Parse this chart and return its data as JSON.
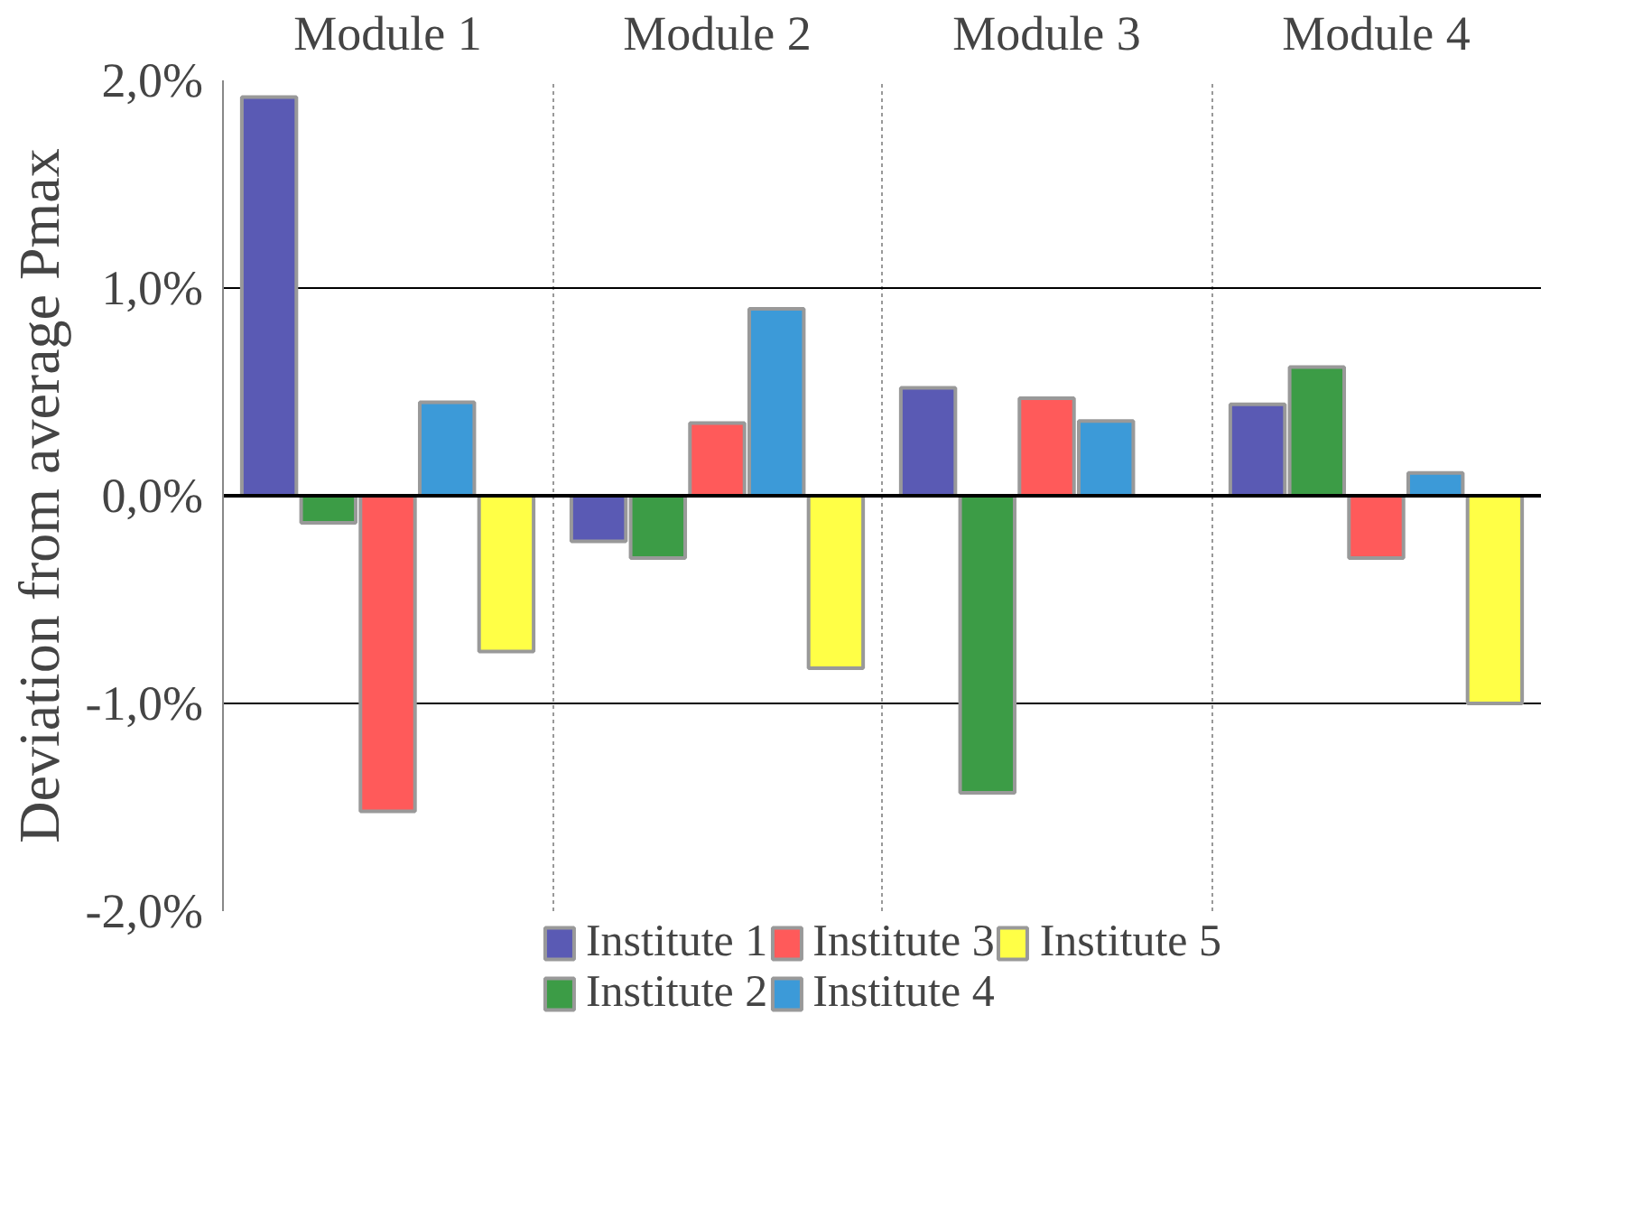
{
  "chart_data": {
    "type": "bar",
    "ylabel": "Deviation from average Pmax",
    "categories": [
      "Module 1",
      "Module 2",
      "Module 3",
      "Module 4"
    ],
    "series": [
      {
        "name": "Institute 1",
        "color": "#5a5ab4",
        "values": [
          1.92,
          -0.22,
          0.52,
          0.44
        ]
      },
      {
        "name": "Institute 2",
        "color": "#3c9c46",
        "values": [
          -0.13,
          -0.3,
          -1.43,
          0.62
        ]
      },
      {
        "name": "Institute 3",
        "color": "#ff5a5a",
        "values": [
          -1.52,
          0.35,
          0.47,
          -0.3
        ]
      },
      {
        "name": "Institute 4",
        "color": "#3c9ad8",
        "values": [
          0.45,
          0.9,
          0.36,
          0.11
        ]
      },
      {
        "name": "Institute 5",
        "color": "#ffff46",
        "values": [
          -0.75,
          -0.83,
          null,
          -1.0
        ]
      }
    ],
    "ylim": [
      -2.0,
      2.0
    ],
    "yticks": [
      {
        "value": -2.0,
        "label": "-2,0%"
      },
      {
        "value": -1.0,
        "label": "-1,0%"
      },
      {
        "value": 0.0,
        "label": "0,0%"
      },
      {
        "value": 1.0,
        "label": "1,0%"
      },
      {
        "value": 2.0,
        "label": "2,0%"
      }
    ],
    "grid": true,
    "legend": "bottom"
  }
}
